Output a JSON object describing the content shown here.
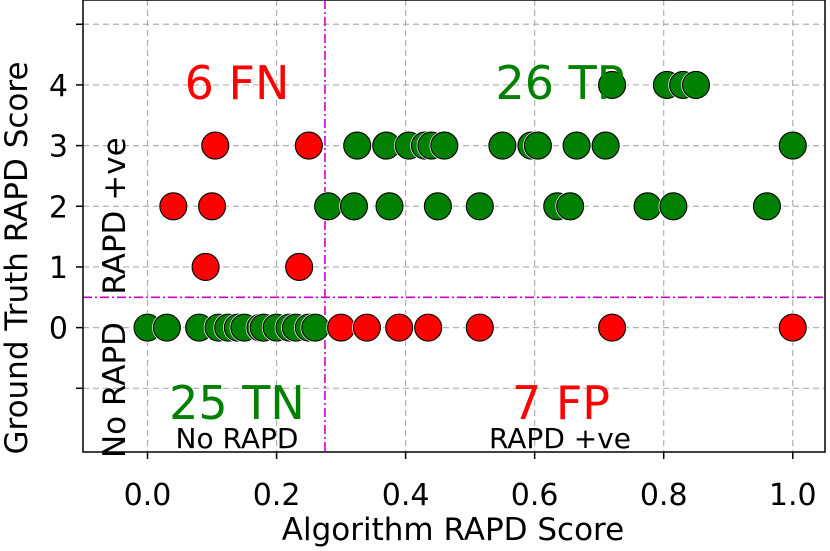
{
  "chart_data": {
    "type": "scatter",
    "xlabel": "Algorithm RAPD Score",
    "ylabel": "Ground Truth RAPD Score",
    "xlim": [
      -0.1,
      1.05
    ],
    "ylim": [
      -2.05,
      5.4
    ],
    "x_ticks": [
      "0.0",
      "0.2",
      "0.4",
      "0.6",
      "0.8",
      "1.0"
    ],
    "x_tick_values": [
      0.0,
      0.2,
      0.4,
      0.6,
      0.8,
      1.0
    ],
    "y_ticks": [
      "0",
      "1",
      "2",
      "3",
      "4"
    ],
    "y_tick_values": [
      0,
      1,
      2,
      3,
      4
    ],
    "grid": true,
    "grid_y_values": [
      -1,
      0,
      1,
      2,
      3,
      4,
      5
    ],
    "threshold_x": 0.275,
    "threshold_y": 0.5,
    "threshold_color": "#cc00cc",
    "quadrant_labels": {
      "fn": "6 FN",
      "tp": "26 TP",
      "tn": "25 TN",
      "fp": "7 FP",
      "no_rapd": "No RAPD",
      "rapd_pos": "RAPD +ve",
      "side_no_rapd": "No RAPD",
      "side_rapd_pos": "RAPD +ve"
    },
    "colors": {
      "red": "#ff0000",
      "green": "#008000"
    },
    "series": [
      {
        "color": "green",
        "points": [
          [
            0.0,
            0
          ],
          [
            0.03,
            0
          ],
          [
            0.08,
            0
          ],
          [
            0.11,
            0
          ],
          [
            0.125,
            0
          ],
          [
            0.14,
            0
          ],
          [
            0.15,
            0
          ],
          [
            0.175,
            0
          ],
          [
            0.18,
            0
          ],
          [
            0.2,
            0
          ],
          [
            0.22,
            0
          ],
          [
            0.23,
            0
          ],
          [
            0.25,
            0
          ],
          [
            0.26,
            0
          ],
          [
            0.28,
            2
          ],
          [
            0.32,
            2
          ],
          [
            0.375,
            2
          ],
          [
            0.45,
            2
          ],
          [
            0.515,
            2
          ],
          [
            0.635,
            2
          ],
          [
            0.655,
            2
          ],
          [
            0.775,
            2
          ],
          [
            0.815,
            2
          ],
          [
            0.96,
            2
          ],
          [
            0.325,
            3
          ],
          [
            0.37,
            3
          ],
          [
            0.405,
            3
          ],
          [
            0.43,
            3
          ],
          [
            0.44,
            3
          ],
          [
            0.46,
            3
          ],
          [
            0.55,
            3
          ],
          [
            0.595,
            3
          ],
          [
            0.605,
            3
          ],
          [
            0.665,
            3
          ],
          [
            0.71,
            3
          ],
          [
            1.0,
            3
          ],
          [
            0.72,
            4
          ],
          [
            0.805,
            4
          ],
          [
            0.83,
            4
          ],
          [
            0.85,
            4
          ]
        ]
      },
      {
        "color": "red",
        "points": [
          [
            0.04,
            2
          ],
          [
            0.09,
            1
          ],
          [
            0.1,
            2
          ],
          [
            0.105,
            3
          ],
          [
            0.235,
            1
          ],
          [
            0.25,
            3
          ],
          [
            0.3,
            0
          ],
          [
            0.34,
            0
          ],
          [
            0.39,
            0
          ],
          [
            0.435,
            0
          ],
          [
            0.515,
            0
          ],
          [
            0.72,
            0
          ],
          [
            1.0,
            0
          ]
        ]
      }
    ]
  }
}
